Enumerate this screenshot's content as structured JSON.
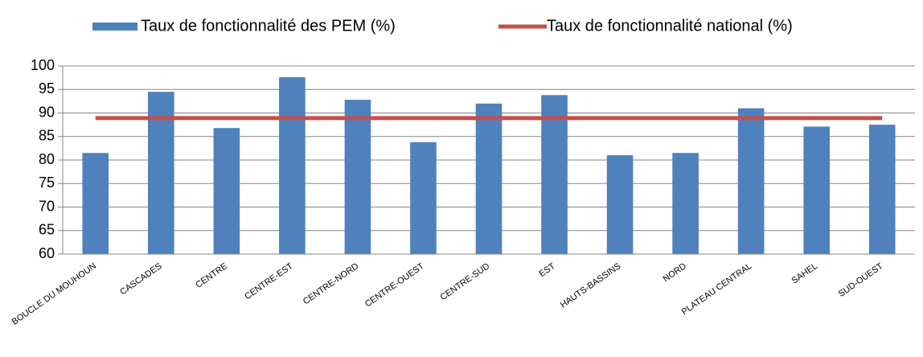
{
  "chart_data": {
    "type": "bar",
    "categories": [
      "BOUCLE DU MOUHOUN",
      "CASCADES",
      "CENTRE",
      "CENTRE-EST",
      "CENTRE-NORD",
      "CENTRE-OUEST",
      "CENTRE-SUD",
      "EST",
      "HAUTS-BASSINS",
      "NORD",
      "PLATEAU CENTRAL",
      "SAHEL",
      "SUD-OUEST"
    ],
    "series": [
      {
        "name": "Taux de fonctionnalité des PEM (%)",
        "type": "bar",
        "color": "#4f81bd",
        "values": [
          81.5,
          94.5,
          86.8,
          97.6,
          92.8,
          83.8,
          92,
          93.8,
          81,
          81.5,
          91,
          87.1,
          87.5
        ]
      },
      {
        "name": "Taux de fonctionnalité national (%)",
        "type": "line",
        "color": "#c0504d",
        "values": [
          88.9,
          88.9,
          88.9,
          88.9,
          88.9,
          88.9,
          88.9,
          88.9,
          88.9,
          88.9,
          88.9,
          88.9,
          88.9
        ]
      }
    ],
    "ylim": [
      60,
      100
    ],
    "yticks": [
      60,
      65,
      70,
      75,
      80,
      85,
      90,
      95,
      100
    ],
    "grid": true,
    "legend": "top"
  }
}
